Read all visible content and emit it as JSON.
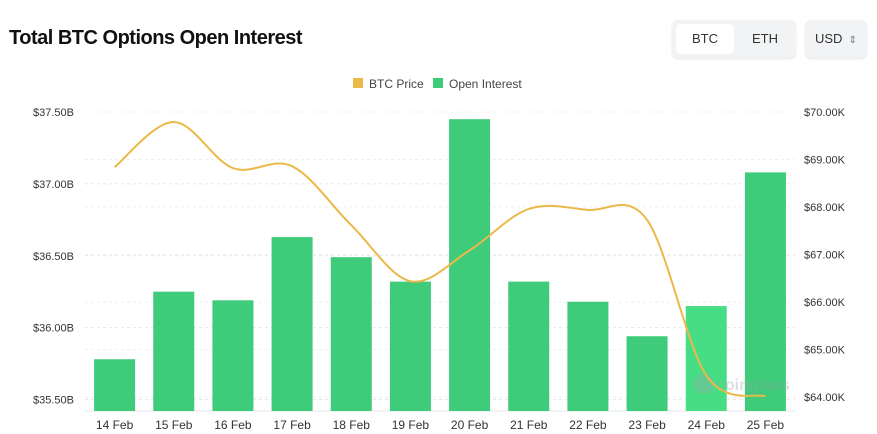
{
  "header": {
    "title": "Total BTC Options Open Interest",
    "asset_tabs": [
      "BTC",
      "ETH"
    ],
    "currency": "USD"
  },
  "chart_data": {
    "type": "bar",
    "title": "Total BTC Options Open Interest",
    "categories": [
      "14 Feb",
      "15 Feb",
      "16 Feb",
      "17 Feb",
      "18 Feb",
      "19 Feb",
      "20 Feb",
      "21 Feb",
      "22 Feb",
      "23 Feb",
      "24 Feb",
      "25 Feb"
    ],
    "series": [
      {
        "name": "Open Interest",
        "type": "bar",
        "axis": "left",
        "unit": "B USD",
        "color": "#3ecb7a",
        "values": [
          35.78,
          36.25,
          36.19,
          36.63,
          36.49,
          36.32,
          37.45,
          36.32,
          36.18,
          35.94,
          36.15,
          37.08
        ]
      },
      {
        "name": "BTC Price",
        "type": "line",
        "axis": "right",
        "unit": "K USD",
        "color": "#ebb94a",
        "values": [
          68.84,
          69.79,
          68.82,
          68.86,
          67.62,
          66.44,
          67.09,
          67.96,
          67.94,
          67.73,
          64.46,
          64.02
        ]
      }
    ],
    "left_axis": {
      "ticks": [
        "$37.50B",
        "$37.00B",
        "$36.50B",
        "$36.00B",
        "$35.50B"
      ],
      "tick_values": [
        37.5,
        37.0,
        36.5,
        36.0,
        35.5
      ],
      "range": [
        35.42,
        37.5
      ]
    },
    "right_axis": {
      "ticks": [
        "$70.00K",
        "$69.00K",
        "$68.00K",
        "$67.00K",
        "$66.00K",
        "$65.00K",
        "$64.00K"
      ],
      "tick_values": [
        70,
        69,
        68,
        67,
        66,
        65,
        64
      ],
      "range": [
        63.71,
        70
      ]
    },
    "highlighted_category": "24 Feb",
    "legend": {
      "placement": "top-center",
      "items": [
        "BTC Price",
        "Open Interest"
      ]
    },
    "grid": true,
    "watermark": "coinglass"
  }
}
